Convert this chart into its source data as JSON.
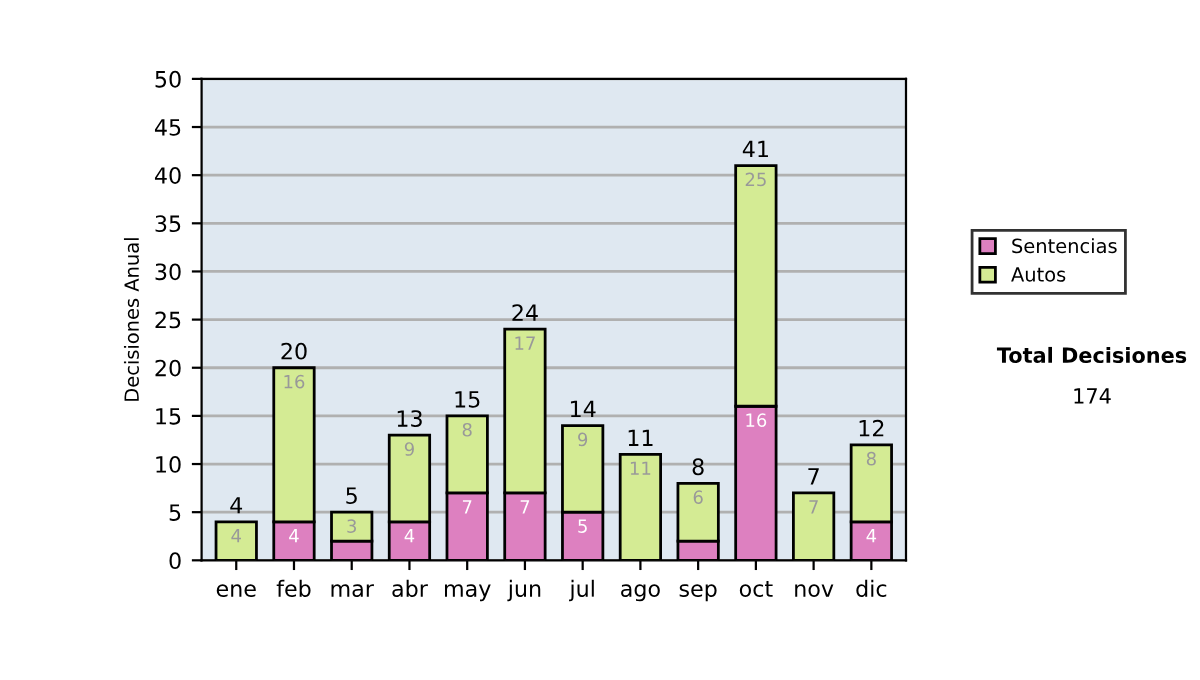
{
  "chart_data": {
    "type": "bar",
    "stacked": true,
    "ylabel": "Decisiones Anual",
    "categories": [
      "ene",
      "feb",
      "mar",
      "abr",
      "may",
      "jun",
      "jul",
      "ago",
      "sep",
      "oct",
      "nov",
      "dic"
    ],
    "series": [
      {
        "name": "Sentencias",
        "color": "#dd80c0",
        "values": [
          0,
          4,
          2,
          4,
          7,
          7,
          5,
          0,
          2,
          16,
          0,
          4
        ],
        "value_labels": [
          null,
          "4",
          null,
          "4",
          "7",
          "7",
          "5",
          null,
          null,
          "16",
          null,
          "4"
        ]
      },
      {
        "name": "Autos",
        "color": "#d4eb94",
        "values": [
          4,
          16,
          3,
          9,
          8,
          17,
          9,
          11,
          6,
          25,
          7,
          8
        ],
        "value_labels": [
          "4",
          "16",
          "3",
          "9",
          "8",
          "17",
          "9",
          "11",
          "6",
          "25",
          "7",
          "8"
        ]
      }
    ],
    "totals": [
      "4",
      "20",
      "5",
      "13",
      "15",
      "24",
      "14",
      "11",
      "8",
      "41",
      "7",
      "12"
    ],
    "ylim": [
      0,
      50
    ],
    "yticks": [
      0,
      5,
      10,
      15,
      20,
      25,
      30,
      35,
      40,
      45,
      50
    ],
    "grid": "y",
    "legend": "right",
    "annotations": [
      "Total Decisiones",
      "174"
    ]
  }
}
